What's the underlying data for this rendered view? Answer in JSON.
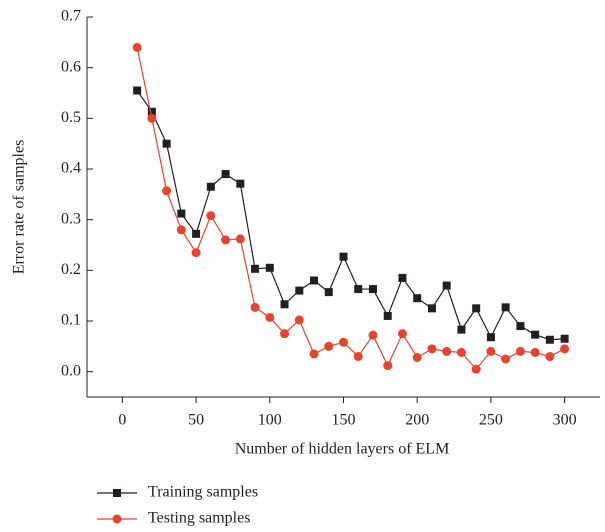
{
  "chart_data": {
    "type": "line",
    "x_label": "Number of hidden layers of ELM",
    "y_label": "Error rate of samples",
    "x": [
      10,
      20,
      30,
      40,
      50,
      60,
      70,
      80,
      90,
      100,
      110,
      120,
      130,
      140,
      150,
      160,
      170,
      180,
      190,
      200,
      210,
      220,
      230,
      240,
      250,
      260,
      270,
      280,
      290,
      300
    ],
    "series": [
      {
        "name": "Training samples",
        "color": "#231f20",
        "marker": "square",
        "values": [
          0.555,
          0.513,
          0.45,
          0.312,
          0.272,
          0.365,
          0.39,
          0.371,
          0.203,
          0.205,
          0.133,
          0.16,
          0.18,
          0.157,
          0.227,
          0.163,
          0.163,
          0.11,
          0.185,
          0.145,
          0.125,
          0.17,
          0.083,
          0.125,
          0.068,
          0.127,
          0.09,
          0.073,
          0.063,
          0.065
        ]
      },
      {
        "name": "Testing samples",
        "color": "#e8432e",
        "marker": "circle",
        "values": [
          0.64,
          0.5,
          0.357,
          0.28,
          0.235,
          0.308,
          0.26,
          0.262,
          0.127,
          0.107,
          0.075,
          0.102,
          0.035,
          0.05,
          0.058,
          0.03,
          0.072,
          0.012,
          0.075,
          0.028,
          0.045,
          0.04,
          0.038,
          0.005,
          0.04,
          0.025,
          0.04,
          0.038,
          0.03,
          0.045
        ]
      }
    ],
    "xlim": [
      -24,
      324
    ],
    "ylim": [
      -0.05,
      0.7
    ],
    "xticks": [
      0,
      50,
      100,
      150,
      200,
      250,
      300
    ],
    "yticks": [
      {
        "value": 0,
        "label": "0.0"
      },
      0.1,
      0.2,
      0.3,
      0.4,
      0.5,
      0.6,
      0.7
    ]
  }
}
